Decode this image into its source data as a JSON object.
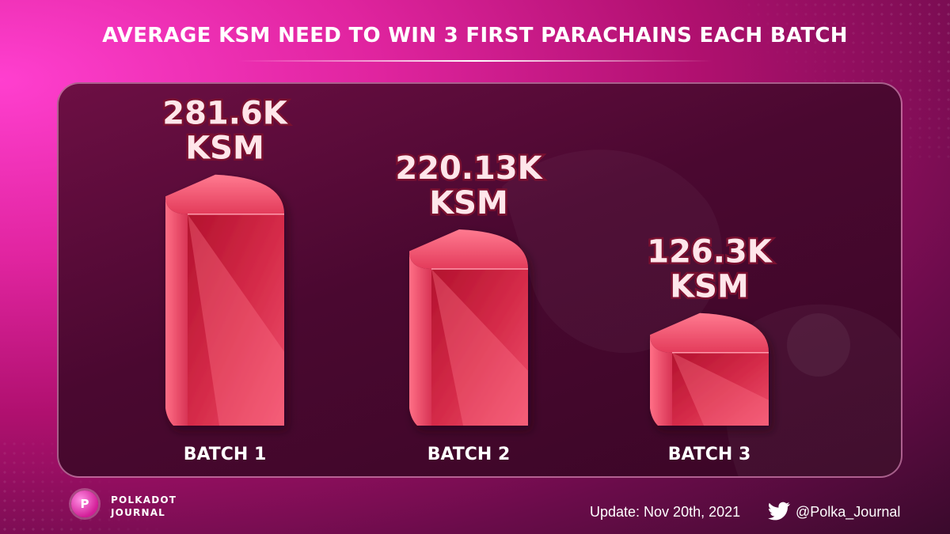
{
  "header": {
    "title": "AVERAGE KSM NEED TO WIN 3 FIRST PARACHAINS EACH BATCH"
  },
  "chart_data": {
    "type": "bar",
    "title": "AVERAGE KSM NEED TO WIN 3 FIRST PARACHAINS EACH BATCH",
    "categories": [
      "BATCH 1",
      "BATCH 2",
      "BATCH 3"
    ],
    "values": [
      281.6,
      220.13,
      126.3
    ],
    "value_labels": [
      "281.6K",
      "220.13K",
      "126.3K"
    ],
    "unit": "KSM",
    "grid": false,
    "legend": "none",
    "bar_color": "#f0506e"
  },
  "footer": {
    "brand_line1": "POLKADOT",
    "brand_line2": "JOURNAL",
    "logo_glyph": "P",
    "update": "Update: Nov 20th, 2021",
    "twitter_handle": "@Polka_Journal",
    "twitter_icon": "twitter-bird-icon"
  },
  "colors": {
    "accent": "#e0249f",
    "panel": "#4a0830",
    "label_fill": "#ffe6ea",
    "label_stroke": "#7a1030"
  }
}
